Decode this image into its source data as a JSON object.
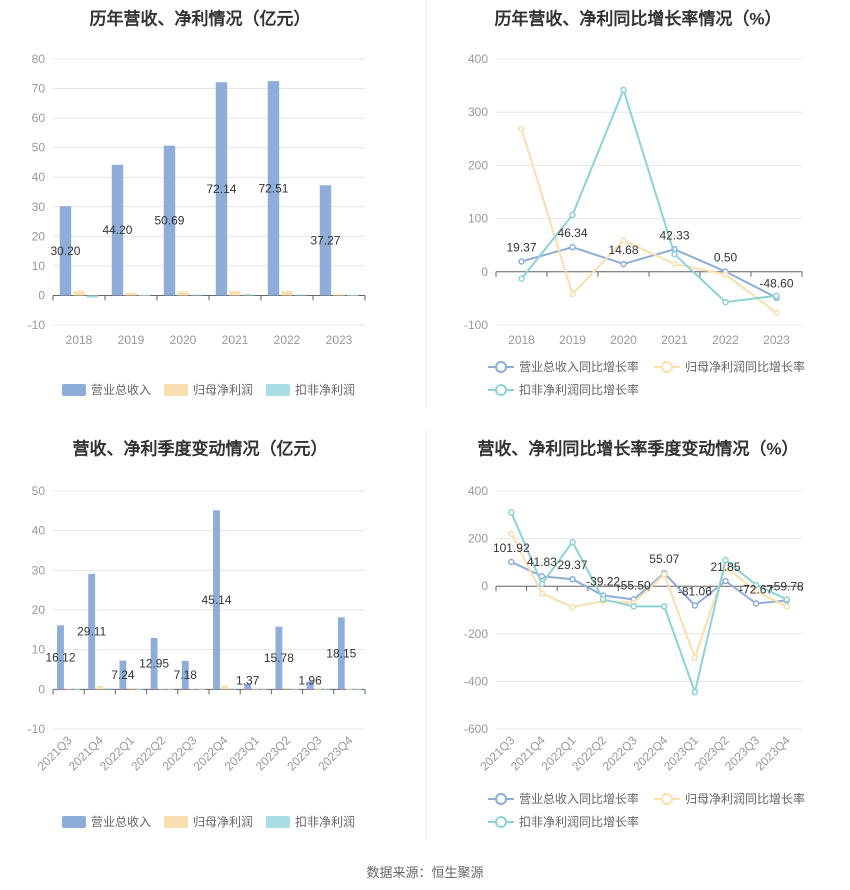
{
  "source": "数据来源：恒生聚源",
  "colors": {
    "revenue": "#8eadd9",
    "parent_profit": "#f9dfae",
    "nonrecurring_profit": "#a9dfe4",
    "line_revenue": "#8eadd9",
    "line_parent": "#f9dfae",
    "line_nonrecurring": "#8dd3d6"
  },
  "chart_data": [
    {
      "type": "bar",
      "title": "历年营收、净利情况（亿元）",
      "categories": [
        "2018",
        "2019",
        "2020",
        "2021",
        "2022",
        "2023"
      ],
      "ylim": [
        -10,
        80
      ],
      "yticks": [
        -10,
        0,
        10,
        20,
        30,
        40,
        50,
        60,
        70,
        80
      ],
      "grid": true,
      "legend_position": "bottom",
      "series": [
        {
          "name": "营业总收入",
          "values": [
            30.2,
            44.2,
            50.69,
            72.14,
            72.51,
            37.27
          ],
          "labels": [
            "30.20",
            "44.20",
            "50.69",
            "72.14",
            "72.51",
            "37.27"
          ]
        },
        {
          "name": "归母净利润",
          "values": [
            1.5,
            0.9,
            1.3,
            1.5,
            1.4,
            0.3
          ]
        },
        {
          "name": "扣非净利润",
          "values": [
            -0.8,
            0.2,
            0.3,
            0.4,
            0.3,
            0.2
          ]
        }
      ]
    },
    {
      "type": "line",
      "title": "历年营收、净利同比增长率情况（%）",
      "categories": [
        "2018",
        "2019",
        "2020",
        "2021",
        "2022",
        "2023"
      ],
      "ylim": [
        -100,
        400
      ],
      "yticks": [
        -100,
        0,
        100,
        200,
        300,
        400
      ],
      "grid": true,
      "legend_position": "bottom",
      "series": [
        {
          "name": "营业总收入同比增长率",
          "values": [
            19.37,
            46.34,
            14.68,
            42.33,
            0.5,
            -48.6
          ],
          "labels": [
            "19.37",
            "46.34",
            "14.68",
            "42.33",
            "0.50",
            "-48.60"
          ]
        },
        {
          "name": "归母净利润同比增长率",
          "values": [
            269,
            -42,
            59,
            15,
            -5,
            -77
          ]
        },
        {
          "name": "扣非净利润同比增长率",
          "values": [
            -13,
            107,
            342,
            33,
            -57,
            -45
          ]
        }
      ]
    },
    {
      "type": "bar",
      "title": "营收、净利季度变动情况（亿元）",
      "categories": [
        "2021Q3",
        "2021Q4",
        "2022Q1",
        "2022Q2",
        "2022Q3",
        "2022Q4",
        "2023Q1",
        "2023Q2",
        "2023Q3",
        "2023Q4"
      ],
      "ylim": [
        -10,
        50
      ],
      "yticks": [
        -10,
        0,
        10,
        20,
        30,
        40,
        50
      ],
      "grid": true,
      "legend_position": "bottom",
      "series": [
        {
          "name": "营业总收入",
          "values": [
            16.12,
            29.11,
            7.24,
            12.95,
            7.18,
            45.14,
            1.37,
            15.78,
            1.96,
            18.15
          ],
          "labels": [
            "16.12",
            "29.11",
            "7.24",
            "12.95",
            "7.18",
            "45.14",
            "1.37",
            "15.78",
            "1.96",
            "18.15"
          ]
        },
        {
          "name": "归母净利润",
          "values": [
            0.2,
            0.8,
            0.3,
            0.2,
            0.2,
            1.0,
            -0.1,
            0.3,
            0.1,
            0.1
          ]
        },
        {
          "name": "扣非净利润",
          "values": [
            0.1,
            0.3,
            0.1,
            0.1,
            0.1,
            0.2,
            -0.1,
            0.1,
            0.0,
            0.1
          ]
        }
      ]
    },
    {
      "type": "line",
      "title": "营收、净利同比增长率季度变动情况（%）",
      "categories": [
        "2021Q3",
        "2021Q4",
        "2022Q1",
        "2022Q2",
        "2022Q3",
        "2022Q4",
        "2023Q1",
        "2023Q2",
        "2023Q3",
        "2023Q4"
      ],
      "ylim": [
        -600,
        400
      ],
      "yticks": [
        -600,
        -400,
        -200,
        0,
        200,
        400
      ],
      "grid": true,
      "legend_position": "bottom",
      "series": [
        {
          "name": "营业总收入同比增长率",
          "values": [
            101.92,
            41.83,
            29.37,
            -39.22,
            -55.5,
            55.07,
            -81.06,
            21.85,
            -72.67,
            -59.78
          ],
          "labels": [
            "101.92",
            "41.83",
            "29.37",
            "-39.22",
            "-55.50",
            "55.07",
            "-81.06",
            "21.85",
            "-72.67",
            "-59.78"
          ]
        },
        {
          "name": "归母净利润同比增长率",
          "values": [
            220,
            -30,
            -88,
            -62,
            -70,
            50,
            -300,
            80,
            -20,
            -85
          ]
        },
        {
          "name": "扣非净利润同比增长率",
          "values": [
            310,
            10,
            185,
            -55,
            -85,
            -85,
            -445,
            110,
            5,
            -55
          ]
        }
      ]
    }
  ]
}
